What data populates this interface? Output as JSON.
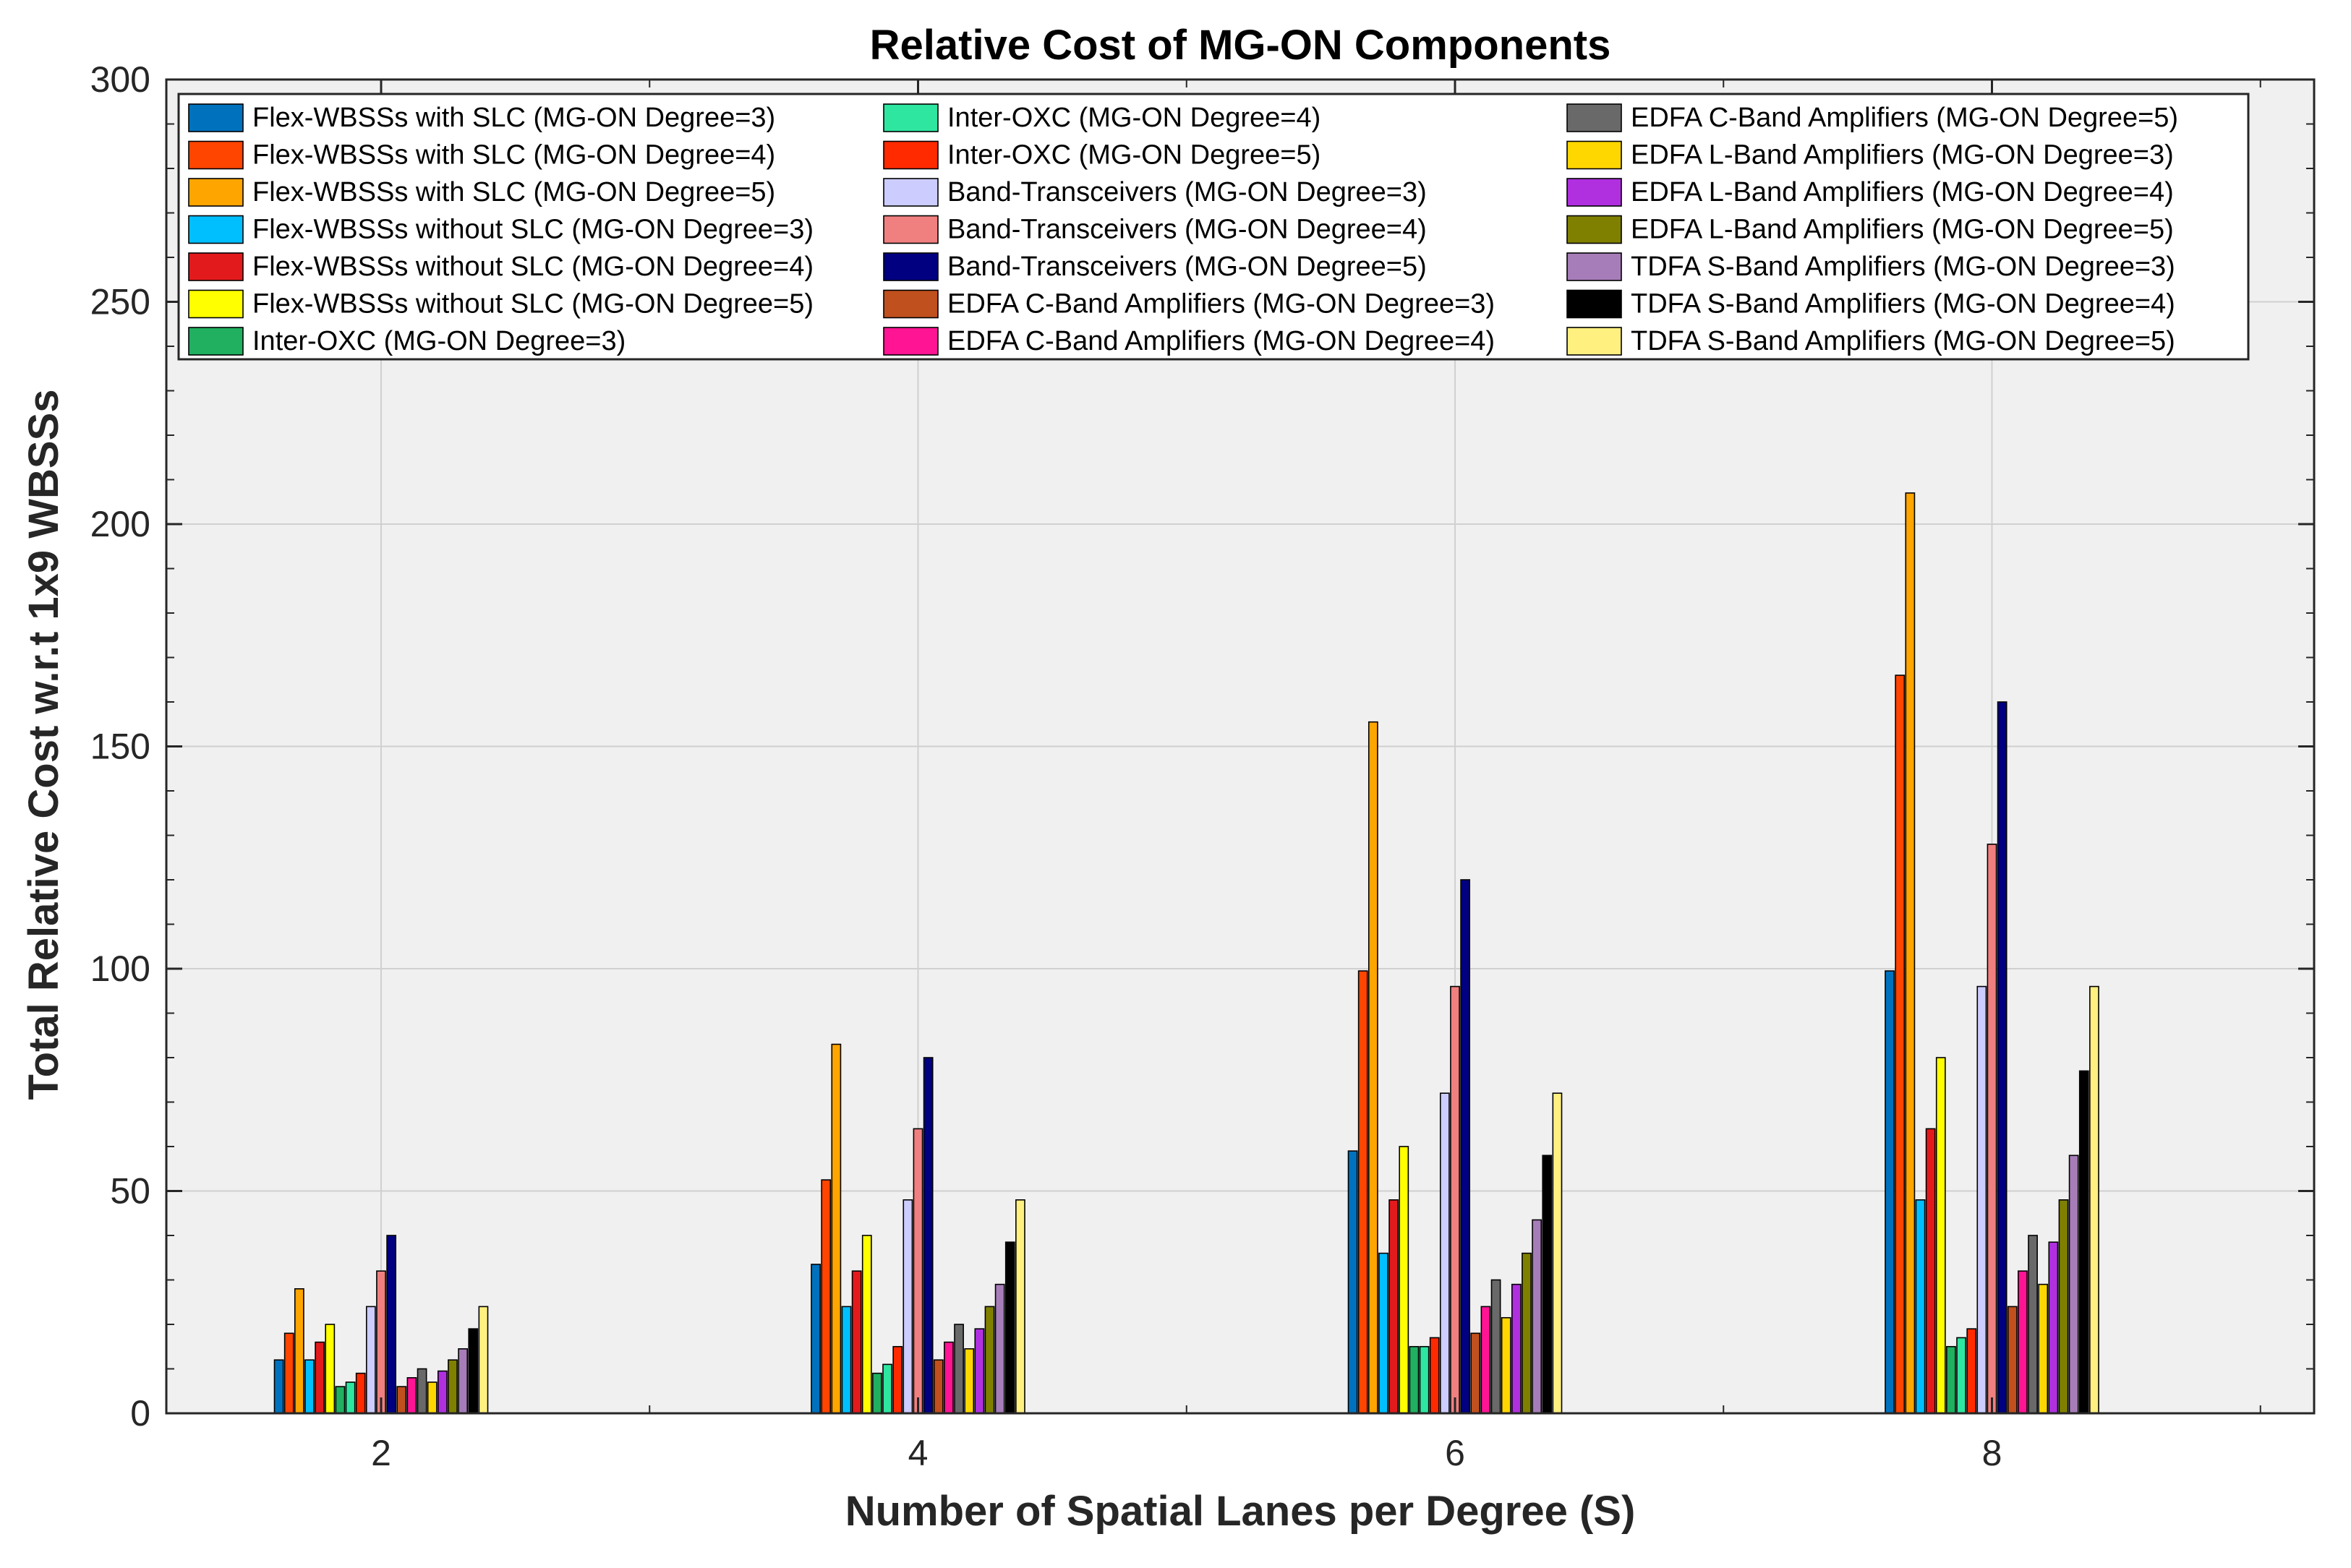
{
  "chart_data": {
    "type": "bar",
    "title": "Relative Cost of MG-ON Components",
    "xlabel": "Number of Spatial Lanes per Degree (S)",
    "ylabel": "Total Relative Cost w.r.t 1x9 WBSSs",
    "categories": [
      "2",
      "4",
      "6",
      "8"
    ],
    "ylim": [
      0,
      300
    ],
    "yticks": [
      "0",
      "50",
      "100",
      "150",
      "200",
      "250",
      "300"
    ],
    "grid": true,
    "legend_position": "top",
    "series": [
      {
        "name": "Flex-WBSSs with SLC (MG-ON Degree=3)",
        "color": "#0072BD",
        "values": [
          12,
          33.5,
          59,
          99.5
        ]
      },
      {
        "name": "Flex-WBSSs with SLC (MG-ON Degree=4)",
        "color": "#FF4500",
        "values": [
          18,
          52.5,
          99.5,
          166
        ]
      },
      {
        "name": "Flex-WBSSs with SLC (MG-ON Degree=5)",
        "color": "#FFA500",
        "values": [
          28,
          83,
          155.5,
          207
        ]
      },
      {
        "name": "Flex-WBSSs without SLC (MG-ON Degree=3)",
        "color": "#00BFFF",
        "values": [
          12,
          24,
          36,
          48
        ]
      },
      {
        "name": "Flex-WBSSs without SLC (MG-ON Degree=4)",
        "color": "#E31A1C",
        "values": [
          16,
          32,
          48,
          64
        ]
      },
      {
        "name": "Flex-WBSSs without SLC (MG-ON Degree=5)",
        "color": "#FFFF00",
        "values": [
          20,
          40,
          60,
          80
        ]
      },
      {
        "name": "Inter-OXC (MG-ON Degree=3)",
        "color": "#20B060",
        "values": [
          6,
          9,
          15,
          15
        ]
      },
      {
        "name": "Inter-OXC (MG-ON Degree=4)",
        "color": "#2EE6A0",
        "values": [
          7,
          11,
          15,
          17
        ]
      },
      {
        "name": "Inter-OXC (MG-ON Degree=5)",
        "color": "#FF2A00",
        "values": [
          9,
          15,
          17,
          19
        ]
      },
      {
        "name": "Band-Transceivers (MG-ON Degree=3)",
        "color": "#CCCCFF",
        "values": [
          24,
          48,
          72,
          96
        ]
      },
      {
        "name": "Band-Transceivers (MG-ON Degree=4)",
        "color": "#F08080",
        "values": [
          32,
          64,
          96,
          128
        ]
      },
      {
        "name": "Band-Transceivers (MG-ON Degree=5)",
        "color": "#000080",
        "values": [
          40,
          80,
          120,
          160
        ]
      },
      {
        "name": "EDFA C-Band Amplifiers (MG-ON Degree=3)",
        "color": "#C0501E",
        "values": [
          6,
          12,
          18,
          24
        ]
      },
      {
        "name": "EDFA C-Band Amplifiers (MG-ON Degree=4)",
        "color": "#FF1493",
        "values": [
          8,
          16,
          24,
          32
        ]
      },
      {
        "name": "EDFA C-Band Amplifiers (MG-ON Degree=5)",
        "color": "#696969",
        "values": [
          10,
          20,
          30,
          40
        ]
      },
      {
        "name": "EDFA L-Band Amplifiers (MG-ON Degree=3)",
        "color": "#FFD700",
        "values": [
          7,
          14.5,
          21.5,
          29
        ]
      },
      {
        "name": "EDFA L-Band Amplifiers (MG-ON Degree=4)",
        "color": "#B030E0",
        "values": [
          9.5,
          19,
          29,
          38.5
        ]
      },
      {
        "name": "EDFA L-Band Amplifiers (MG-ON Degree=5)",
        "color": "#808000",
        "values": [
          12,
          24,
          36,
          48
        ]
      },
      {
        "name": "TDFA S-Band Amplifiers (MG-ON Degree=3)",
        "color": "#A67DB8",
        "values": [
          14.5,
          29,
          43.5,
          58
        ]
      },
      {
        "name": "TDFA S-Band Amplifiers (MG-ON Degree=4)",
        "color": "#000000",
        "values": [
          19,
          38.5,
          58,
          77
        ]
      },
      {
        "name": "TDFA S-Band Amplifiers (MG-ON Degree=5)",
        "color": "#FFF080",
        "values": [
          24,
          48,
          72,
          96
        ]
      }
    ]
  }
}
